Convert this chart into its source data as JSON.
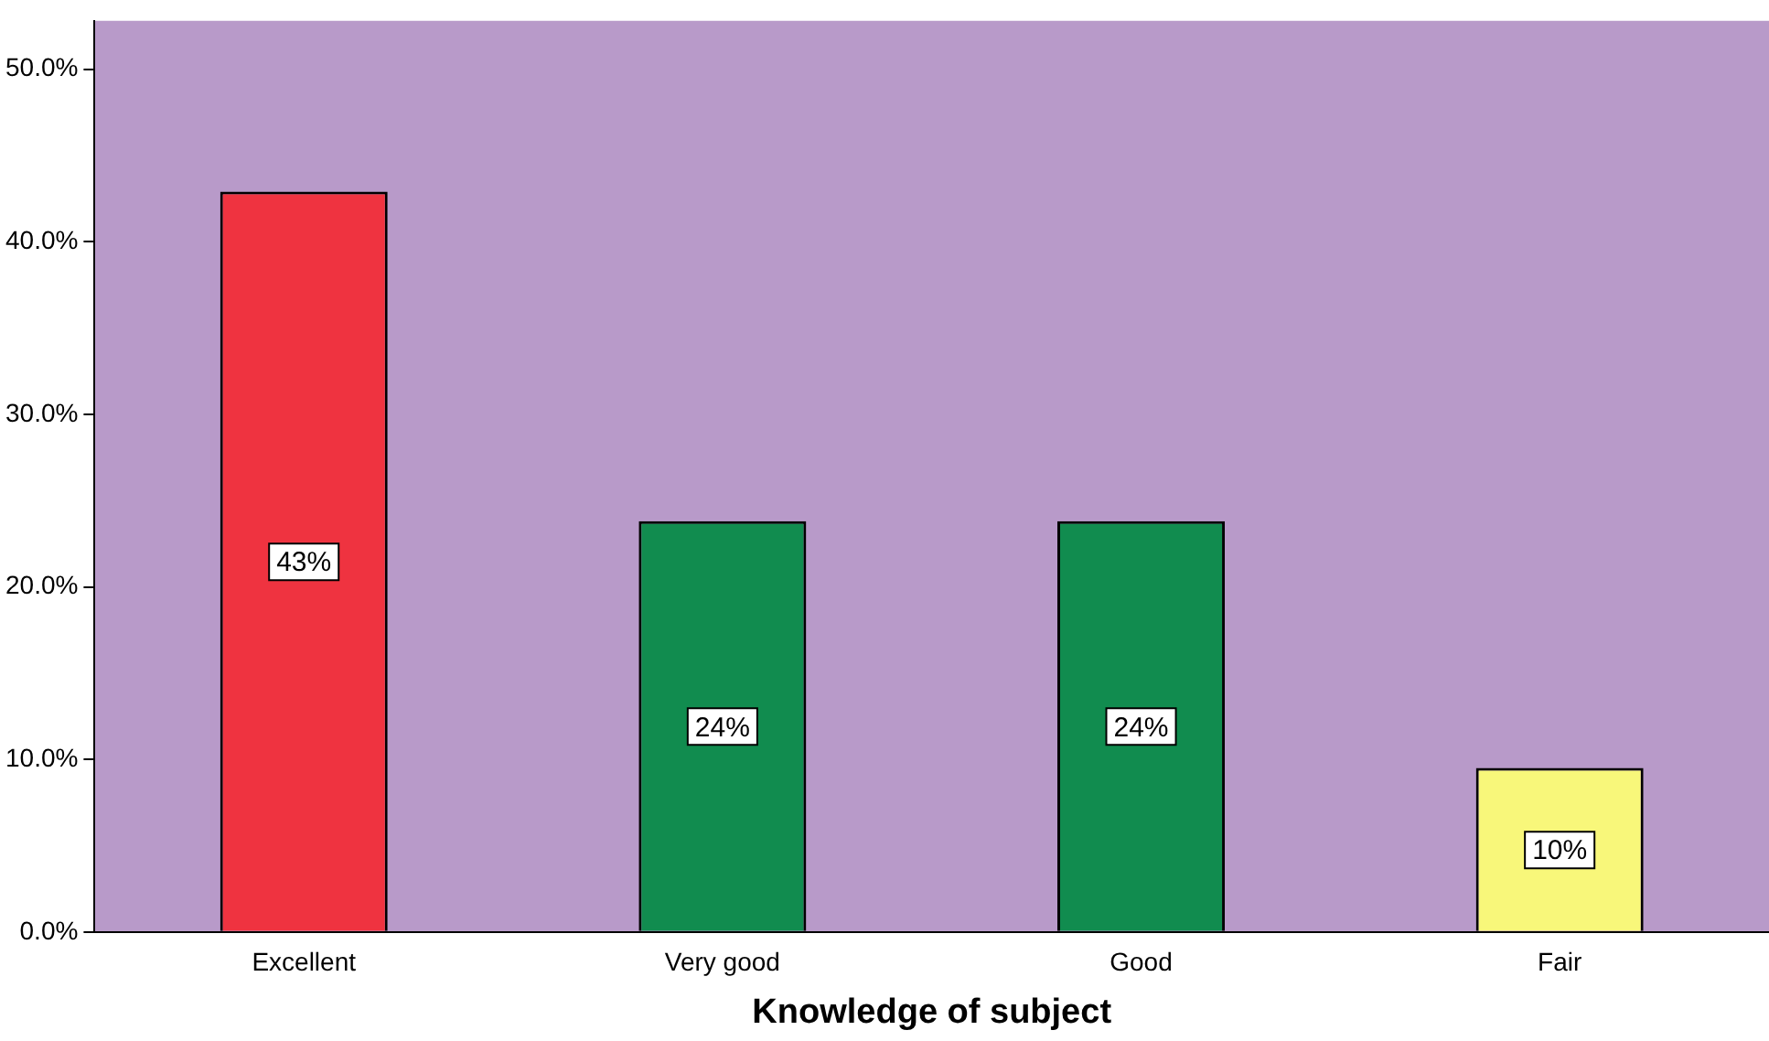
{
  "chart_data": {
    "type": "bar",
    "xlabel": "Knowledge of subject",
    "categories": [
      "Excellent",
      "Very good",
      "Good",
      "Fair"
    ],
    "values": [
      42.9,
      23.8,
      23.8,
      9.5
    ],
    "value_labels": [
      "43%",
      "24%",
      "24%",
      "10%"
    ],
    "colors": [
      "#ef3340",
      "#118c4f",
      "#118c4f",
      "#f8f77a"
    ],
    "ylim": [
      0,
      52.8
    ],
    "yticks": [
      {
        "value": 0,
        "label": "0.0%"
      },
      {
        "value": 10,
        "label": "10.0%"
      },
      {
        "value": 20,
        "label": "20.0%"
      },
      {
        "value": 30,
        "label": "30.0%"
      },
      {
        "value": 40,
        "label": "40.0%"
      },
      {
        "value": 50,
        "label": "50.0%"
      }
    ],
    "grid": false,
    "legend": false
  }
}
